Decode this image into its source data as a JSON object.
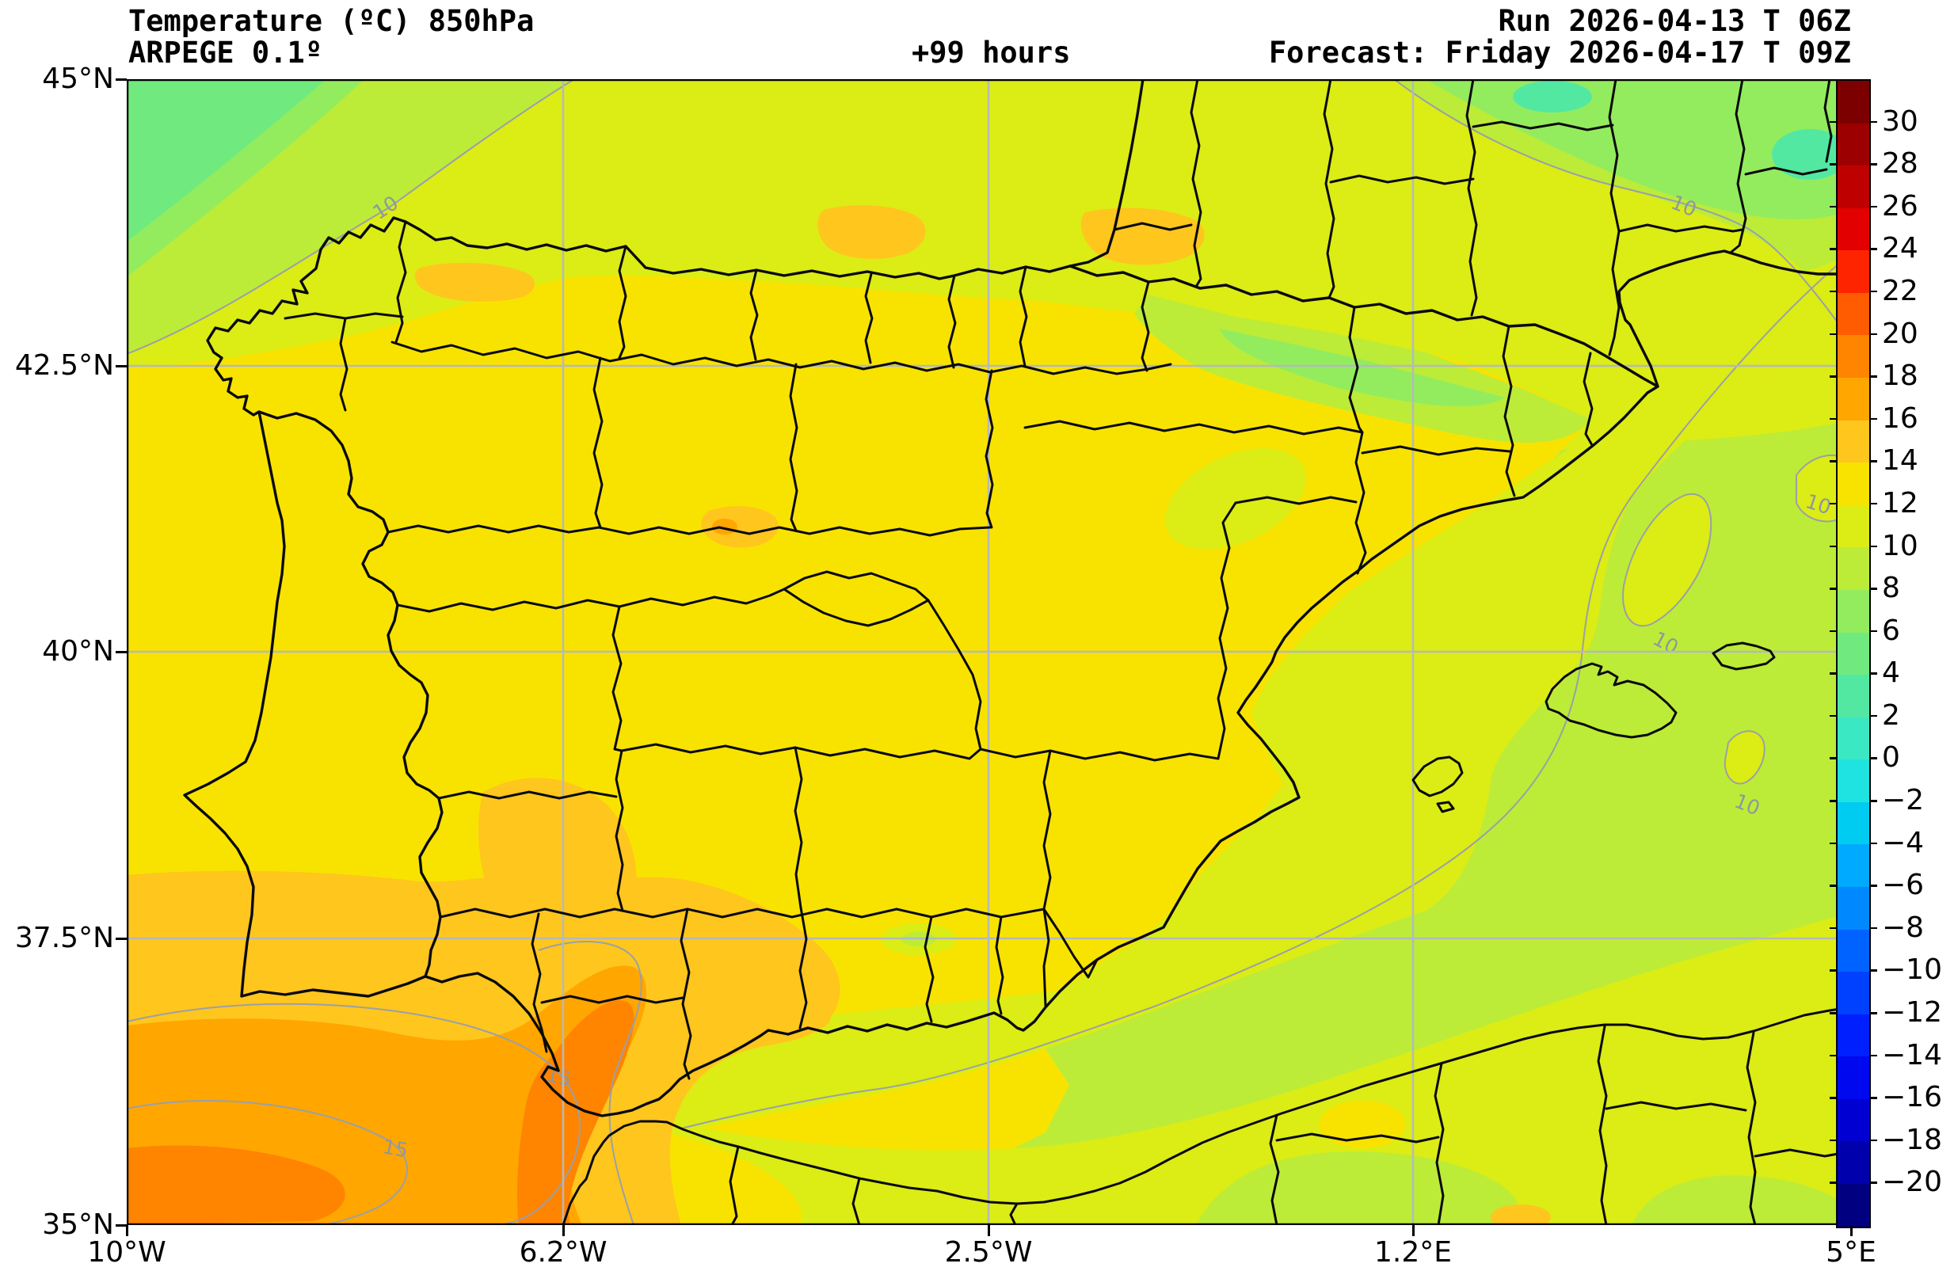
{
  "header": {
    "title": "Temperature (ºC) 850hPa",
    "model": "ARPEGE 0.1º",
    "lead": "+99 hours",
    "run": "Run 2026-04-13 T 06Z",
    "forecast": "Forecast: Friday 2026-04-17 T 09Z"
  },
  "axes": {
    "x_tick_labels": [
      "10°W",
      "6.2°W",
      "2.5°W",
      "1.2°E",
      "5°E"
    ],
    "y_tick_labels": [
      "45°N",
      "42.5°N",
      "40°N",
      "37.5°N",
      "35°N"
    ]
  },
  "colorbar": {
    "unit": "°C",
    "tick_labels": [
      "30",
      "28",
      "26",
      "24",
      "22",
      "20",
      "18",
      "16",
      "14",
      "12",
      "10",
      "8",
      "6",
      "4",
      "2",
      "0",
      "−2",
      "−4",
      "−6",
      "−8",
      "−10",
      "−12",
      "−14",
      "−16",
      "−18",
      "−20"
    ],
    "segment_colors": [
      "#7d0000",
      "#9c0000",
      "#be0000",
      "#e20000",
      "#ff2400",
      "#ff5b00",
      "#ff8400",
      "#ffa600",
      "#ffc61e",
      "#f8e300",
      "#dcec15",
      "#bcec38",
      "#93ec5e",
      "#70ea7e",
      "#52e8a2",
      "#3ae9c4",
      "#1fe3e0",
      "#00ccf2",
      "#00aaff",
      "#0089ff",
      "#0063ff",
      "#0040ff",
      "#001fff",
      "#0008f0",
      "#0000d2",
      "#0000ac",
      "#000080"
    ]
  },
  "contours": {
    "level_10_label": "10",
    "level_15_label": "15"
  },
  "map_colors": {
    "band_2_4": "#52e8a2",
    "band_4_6": "#70ea7e",
    "band_6_8": "#93ec5e",
    "band_8_10": "#bcec38",
    "band_10_12": "#dcec15",
    "band_12_14": "#f8e300",
    "band_14_16": "#ffc61e",
    "band_16_18": "#ffa600",
    "band_18_20": "#ff8400",
    "border_black": "#0a0a0a",
    "grid_gray": "#b4b9bd",
    "contour_gray": "#9aa0a8"
  },
  "chart_data": {
    "type": "heatmap",
    "subtype": "filled-contour weather map",
    "title": "Temperature (ºC) 850hPa",
    "model": "ARPEGE 0.1º",
    "run": "2026-04-13 06Z",
    "forecast_valid": "Friday 2026-04-17 09Z",
    "lead_hours": 99,
    "extent": {
      "lon_min_deg_e": -10,
      "lon_max_deg_e": 5,
      "lat_min_deg_n": 35,
      "lat_max_deg_n": 45
    },
    "x_ticks_deg": [
      -10,
      -6.2,
      -2.5,
      1.2,
      5
    ],
    "y_ticks_deg": [
      45,
      42.5,
      40,
      37.5,
      35
    ],
    "colorbar_range_c": [
      -20,
      30
    ],
    "colorbar_step_c": 2,
    "labeled_contour_levels_c": [
      10,
      15
    ],
    "grid": "lat/lon gridlines at tick positions, light gray",
    "legend_position": "right colorbar",
    "field_estimates_c": [
      {
        "region": "Atlantic NW corner / Bay of Biscay",
        "value_range": [
          4,
          8
        ]
      },
      {
        "region": "North coast strip and Galicia",
        "value_range": [
          10,
          12
        ]
      },
      {
        "region": "Cantabrian mountains patch",
        "value_range": [
          14,
          16
        ]
      },
      {
        "region": "Interior plateau of Iberia",
        "value_range": [
          12,
          14
        ]
      },
      {
        "region": "Ebro valley patches",
        "value_range": [
          14,
          16
        ]
      },
      {
        "region": "Pyrenees band",
        "value_range": [
          6,
          10
        ]
      },
      {
        "region": "Southern France",
        "value_range": [
          6,
          10
        ]
      },
      {
        "region": "La Mancha / Sierra Morena blob",
        "value_range": [
          14,
          16
        ]
      },
      {
        "region": "Guadalquivir valley (Seville-Cadiz)",
        "value_range": [
          16,
          20
        ]
      },
      {
        "region": "SW Atlantic corner",
        "value_range": [
          16,
          20
        ]
      },
      {
        "region": "South Portugal / Extremadura",
        "value_range": [
          14,
          16
        ]
      },
      {
        "region": "Mediterranean near Spanish coast and Balearics",
        "value_range": [
          10,
          12
        ]
      },
      {
        "region": "Open Mediterranean / east of Menorca",
        "value_range": [
          8,
          10
        ]
      },
      {
        "region": "North Africa coastal strip",
        "value_range": [
          10,
          14
        ]
      },
      {
        "region": "Algerian interior",
        "value_range": [
          8,
          10
        ]
      }
    ]
  }
}
